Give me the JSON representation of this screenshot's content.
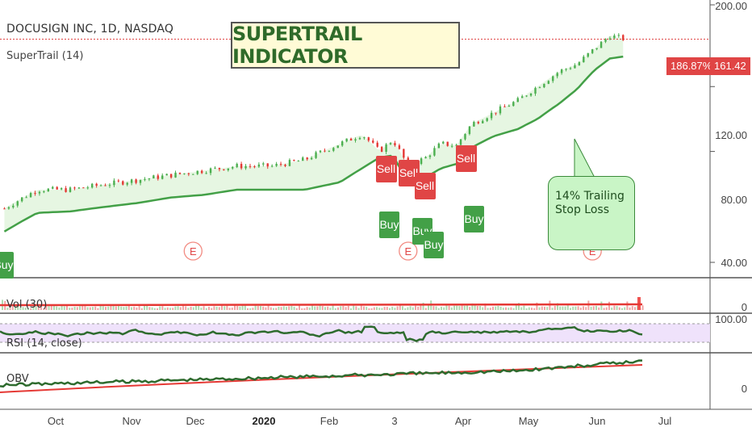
{
  "header": {
    "title": "DOCUSIGN INC, 1D, NASDAQ",
    "indicator": "SuperTrail (14)"
  },
  "banner": "SUPERTRAIL INDICATOR",
  "callout": {
    "line1": "14% Trailing",
    "line2": "Stop Loss"
  },
  "panes": {
    "volume": "Vol (30)",
    "rsi": "RSI (14, close)",
    "obv": "OBV"
  },
  "price_axis": [
    "200.00",
    "120.00",
    "80.00",
    "40.00"
  ],
  "rsi_axis": "100.00",
  "vol_axis": "0",
  "obv_axis": "0",
  "tags": {
    "percent": "186.87%",
    "price": "161.42"
  },
  "signals": {
    "buy": "Buy",
    "sell": "Sell",
    "earnings": "E"
  },
  "colors": {
    "up": "#4caf50",
    "down": "#e53935",
    "trail": "#43a047",
    "fill": "#e6f6e2",
    "rsi_band": "#efe2fb"
  },
  "chart_data": {
    "type": "line",
    "x_ticks": [
      "Oct",
      "Nov",
      "Dec",
      "2020",
      "Feb",
      "3",
      "Apr",
      "May",
      "Jun",
      "Jul"
    ],
    "yscale": "log",
    "ylim": [
      35,
      210
    ],
    "y_ticks": [
      40,
      80,
      120,
      200
    ],
    "last_price": 161.42,
    "last_change_pct": 186.87,
    "series": [
      {
        "name": "SuperTrail (14)",
        "x": [
          "2019-09-10",
          "2019-09-25",
          "2019-10-10",
          "2019-10-25",
          "2019-11-10",
          "2019-11-25",
          "2019-12-10",
          "2019-12-25",
          "2020-01-10",
          "2020-01-25",
          "2020-02-10",
          "2020-02-20",
          "2020-02-28",
          "2020-03-05",
          "2020-03-12",
          "2020-03-20",
          "2020-03-27",
          "2020-04-03",
          "2020-04-10",
          "2020-04-20",
          "2020-05-01",
          "2020-05-10",
          "2020-05-20",
          "2020-05-28",
          "2020-06-05",
          "2020-06-12",
          "2020-06-19"
        ],
        "values": [
          48.5,
          54.5,
          55,
          56.5,
          58,
          60,
          61,
          63,
          63,
          63,
          66,
          72,
          77,
          78,
          65.5,
          68,
          72,
          74,
          82,
          88,
          92,
          98,
          108,
          118,
          133,
          143,
          145
        ]
      },
      {
        "name": "Price",
        "x": [
          "2019-09-10",
          "2019-09-25",
          "2019-10-10",
          "2019-10-25",
          "2019-11-10",
          "2019-11-25",
          "2019-12-10",
          "2019-12-25",
          "2020-01-10",
          "2020-01-25",
          "2020-02-10",
          "2020-02-20",
          "2020-02-28",
          "2020-03-05",
          "2020-03-12",
          "2020-03-20",
          "2020-03-27",
          "2020-04-03",
          "2020-04-10",
          "2020-04-20",
          "2020-05-01",
          "2020-05-10",
          "2020-05-20",
          "2020-05-28",
          "2020-06-05",
          "2020-06-12",
          "2020-06-19"
        ],
        "values": [
          56,
          63,
          63,
          65,
          67,
          69,
          71,
          73,
          73,
          76,
          84,
          89,
          80,
          86,
          73,
          77,
          84,
          83,
          95,
          102,
          110,
          120,
          132,
          138,
          152,
          165,
          161.42
        ]
      }
    ],
    "signals": [
      {
        "type": "Buy",
        "date": "2019-09-10"
      },
      {
        "type": "Sell",
        "date": "2020-02-24"
      },
      {
        "type": "Buy",
        "date": "2020-02-28"
      },
      {
        "type": "Sell",
        "date": "2020-03-09"
      },
      {
        "type": "Sell",
        "date": "2020-03-13"
      },
      {
        "type": "Buy",
        "date": "2020-03-16"
      },
      {
        "type": "Buy",
        "date": "2020-03-19"
      },
      {
        "type": "Sell",
        "date": "2020-04-02"
      },
      {
        "type": "Buy",
        "date": "2020-04-06"
      }
    ],
    "earnings": [
      "2019-12-05",
      "2020-03-12",
      "2020-06-04"
    ]
  }
}
